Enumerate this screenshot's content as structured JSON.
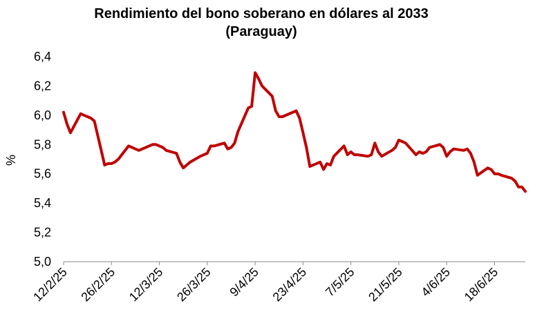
{
  "chart_data": {
    "type": "line",
    "title": "Rendimiento del bono soberano en dólares al 2033",
    "subtitle": "(Paraguay)",
    "ylabel": "%",
    "xlabel": "",
    "ylim": [
      5.0,
      6.4
    ],
    "y_ticks": [
      "5,0",
      "5,2",
      "5,4",
      "5,6",
      "5,8",
      "6,0",
      "6,2",
      "6,4"
    ],
    "x_ticks": [
      "12/2/25",
      "26/2/25",
      "12/3/25",
      "26/3/25",
      "9/4/25",
      "23/4/25",
      "7/5/25",
      "21/5/25",
      "4/6/25",
      "18/6/25"
    ],
    "grid": false,
    "legend": "none",
    "series": [
      {
        "color": "#c00000",
        "x": [
          "12/2/25",
          "13/2/25",
          "14/2/25",
          "17/2/25",
          "18/2/25",
          "19/2/25",
          "20/2/25",
          "21/2/25",
          "24/2/25",
          "25/2/25",
          "26/2/25",
          "27/2/25",
          "28/2/25",
          "3/3/25",
          "4/3/25",
          "5/3/25",
          "6/3/25",
          "7/3/25",
          "10/3/25",
          "11/3/25",
          "12/3/25",
          "13/3/25",
          "14/3/25",
          "17/3/25",
          "18/3/25",
          "19/3/25",
          "20/3/25",
          "21/3/25",
          "24/3/25",
          "25/3/25",
          "26/3/25",
          "27/3/25",
          "28/3/25",
          "31/3/25",
          "1/4/25",
          "2/4/25",
          "3/4/25",
          "4/4/25",
          "7/4/25",
          "8/4/25",
          "9/4/25",
          "10/4/25",
          "11/4/25",
          "14/4/25",
          "15/4/25",
          "16/4/25",
          "17/4/25",
          "21/4/25",
          "22/4/25",
          "23/4/25",
          "24/4/25",
          "25/4/25",
          "28/4/25",
          "29/4/25",
          "30/4/25",
          "1/5/25",
          "2/5/25",
          "5/5/25",
          "6/5/25",
          "7/5/25",
          "8/5/25",
          "9/5/25",
          "12/5/25",
          "13/5/25",
          "14/5/25",
          "15/5/25",
          "16/5/25",
          "19/5/25",
          "20/5/25",
          "21/5/25",
          "22/5/25",
          "23/5/25",
          "26/5/25",
          "27/5/25",
          "28/5/25",
          "29/5/25",
          "30/5/25",
          "2/6/25",
          "3/6/25",
          "4/6/25",
          "5/6/25",
          "6/6/25",
          "9/6/25",
          "10/6/25",
          "11/6/25",
          "12/6/25",
          "13/6/25",
          "16/6/25",
          "17/6/25",
          "18/6/25",
          "19/6/25",
          "20/6/25",
          "23/6/25",
          "24/6/25",
          "25/6/25",
          "26/6/25",
          "27/6/25"
        ],
        "values": [
          6.02,
          5.94,
          5.88,
          6.01,
          6.0,
          5.99,
          5.98,
          5.96,
          5.66,
          5.67,
          5.67,
          5.68,
          5.7,
          5.79,
          5.78,
          5.77,
          5.76,
          5.77,
          5.8,
          5.8,
          5.79,
          5.78,
          5.76,
          5.74,
          5.68,
          5.64,
          5.66,
          5.68,
          5.72,
          5.73,
          5.74,
          5.79,
          5.79,
          5.81,
          5.77,
          5.78,
          5.81,
          5.89,
          6.05,
          6.06,
          6.29,
          6.25,
          6.2,
          6.13,
          6.03,
          5.99,
          5.99,
          6.03,
          5.98,
          5.88,
          5.78,
          5.65,
          5.68,
          5.63,
          5.67,
          5.66,
          5.72,
          5.79,
          5.73,
          5.75,
          5.73,
          5.73,
          5.72,
          5.73,
          5.81,
          5.75,
          5.72,
          5.76,
          5.78,
          5.83,
          5.82,
          5.81,
          5.73,
          5.75,
          5.74,
          5.75,
          5.78,
          5.8,
          5.78,
          5.72,
          5.75,
          5.77,
          5.76,
          5.77,
          5.74,
          5.68,
          5.59,
          5.64,
          5.63,
          5.6,
          5.6,
          5.59,
          5.57,
          5.55,
          5.51,
          5.51,
          5.48
        ]
      }
    ]
  }
}
